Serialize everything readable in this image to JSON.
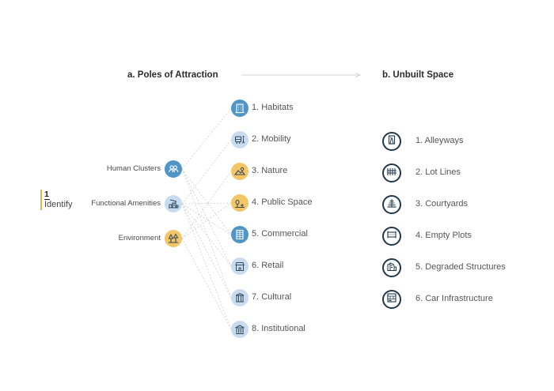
{
  "headings": {
    "poles": "a. Poles of Attraction",
    "unbuilt": "b. Unbuilt Space"
  },
  "step": {
    "number": "1",
    "label": "Identify"
  },
  "sources": [
    {
      "label": "Human Clusters",
      "icon": "people-group-icon",
      "color": "#4f95c6"
    },
    {
      "label": "Functional Amenities",
      "icon": "buildings-crane-icon",
      "color": "#c9dcef"
    },
    {
      "label": "Environment",
      "icon": "trees-icon",
      "color": "#f2c566"
    }
  ],
  "poles": [
    {
      "label": "1. Habitats",
      "icon": "apartment-building-icon",
      "color": "#4f95c6"
    },
    {
      "label": "2. Mobility",
      "icon": "bus-pedestrian-icon",
      "color": "#c9dcef"
    },
    {
      "label": "3. Nature",
      "icon": "landscape-icon",
      "color": "#f2c566"
    },
    {
      "label": "4. Public Space",
      "icon": "plaza-tree-icon",
      "color": "#f2c566"
    },
    {
      "label": "5. Commercial",
      "icon": "office-tower-icon",
      "color": "#4f95c6"
    },
    {
      "label": "6. Retail",
      "icon": "storefront-icon",
      "color": "#c9dcef"
    },
    {
      "label": "7. Cultural",
      "icon": "theatre-icon",
      "color": "#c9dcef"
    },
    {
      "label": "8. Institutional",
      "icon": "institution-columns-icon",
      "color": "#c9dcef"
    }
  ],
  "unbuilt": [
    {
      "label": "1. Alleyways",
      "icon": "alley-icon"
    },
    {
      "label": "2. Lot Lines",
      "icon": "fence-icon"
    },
    {
      "label": "3. Courtyards",
      "icon": "courtyard-icon"
    },
    {
      "label": "4. Empty Plots",
      "icon": "empty-plot-icon"
    },
    {
      "label": "5. Degraded Structures",
      "icon": "ruined-building-icon"
    },
    {
      "label": "6. Car Infrastructure",
      "icon": "parking-garage-icon"
    }
  ],
  "links": [
    {
      "from": 0,
      "to": 0
    },
    {
      "from": 0,
      "to": 4
    },
    {
      "from": 0,
      "to": 5
    },
    {
      "from": 0,
      "to": 6
    },
    {
      "from": 1,
      "to": 1
    },
    {
      "from": 1,
      "to": 3
    },
    {
      "from": 1,
      "to": 4
    },
    {
      "from": 1,
      "to": 5
    },
    {
      "from": 1,
      "to": 6
    },
    {
      "from": 1,
      "to": 7
    },
    {
      "from": 2,
      "to": 2
    },
    {
      "from": 2,
      "to": 3
    },
    {
      "from": 2,
      "to": 7
    }
  ],
  "colors": {
    "blue": "#4f95c6",
    "light_blue": "#c9dcef",
    "yellow": "#f2c566",
    "navy": "#21374d",
    "arrow": "#c8c8c8",
    "link": "#d0d0d0"
  }
}
